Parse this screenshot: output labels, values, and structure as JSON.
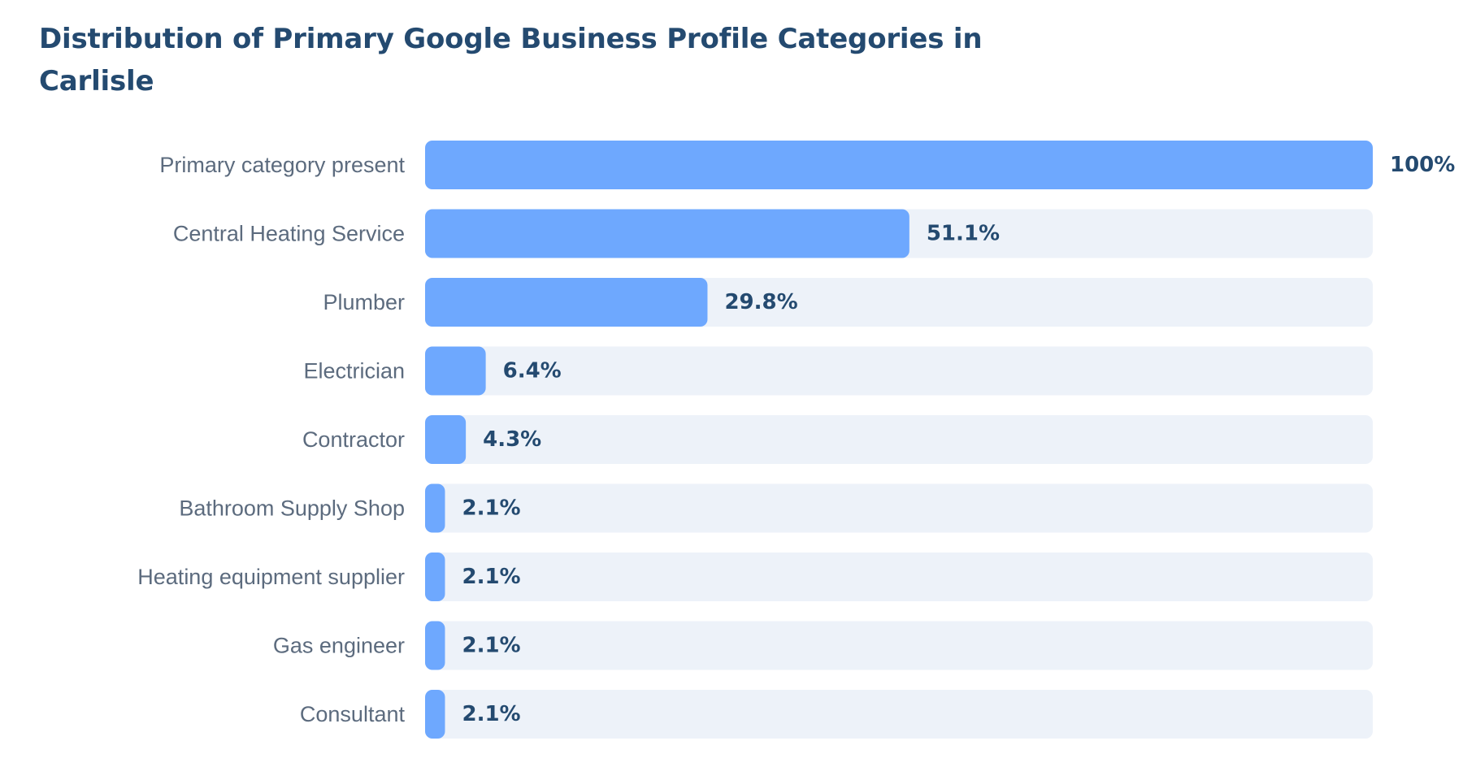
{
  "chart_data": {
    "type": "bar",
    "orientation": "horizontal",
    "title": "Distribution of Primary Google Business Profile Categories in Carlisle",
    "categories": [
      "Primary category present",
      "Central Heating Service",
      "Plumber",
      "Electrician",
      "Contractor",
      "Bathroom Supply Shop",
      "Heating equipment supplier",
      "Gas engineer",
      "Consultant"
    ],
    "values": [
      100,
      51.1,
      29.8,
      6.4,
      4.3,
      2.1,
      2.1,
      2.1,
      2.1
    ],
    "value_labels": [
      "100%",
      "51.1%",
      "29.8%",
      "6.4%",
      "4.3%",
      "2.1%",
      "2.1%",
      "2.1%",
      "2.1%"
    ],
    "unit": "%",
    "xlim": [
      0,
      100
    ],
    "grid": false,
    "legend": "none",
    "colors": {
      "bar": "#6ea8fe",
      "track": "#edf2f9",
      "title": "#244a70",
      "category_text": "#5c6b7e",
      "value_text": "#244a70"
    }
  }
}
